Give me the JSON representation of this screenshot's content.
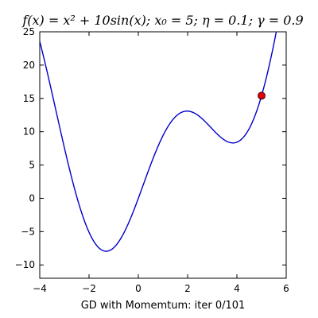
{
  "chart_data": {
    "type": "line",
    "title": "f(x) = x² + 10sin(x); x₀ = 5; η = 0.1; γ = 0.9",
    "xlabel": "GD with Momemtum: iter 0/101",
    "ylabel": "",
    "xlim": [
      -4,
      6
    ],
    "ylim": [
      -12,
      25
    ],
    "xticks": [
      -4,
      -2,
      0,
      2,
      4,
      6
    ],
    "yticks": [
      -10,
      -5,
      0,
      5,
      10,
      15,
      20,
      25
    ],
    "grid": false,
    "legend": "none",
    "function": "x^2 + 10*sin(x)",
    "curve_color": "#0000cc",
    "series": [
      {
        "x": [
          -4,
          -3.5,
          -3,
          -2.5,
          -2,
          -1.5,
          -1.3,
          -1,
          -0.5,
          0,
          0.5,
          1,
          1.5,
          2,
          2.5,
          3,
          3.5,
          3.8,
          4,
          4.5,
          5,
          5.5
        ],
        "values": [
          23.57,
          15.76,
          7.59,
          0.27,
          -5.09,
          -7.72,
          -7.95,
          -7.41,
          -4.54,
          0,
          5.04,
          9.41,
          12.22,
          13.09,
          12.23,
          10.41,
          8.74,
          8.38,
          8.43,
          10.48,
          15.41,
          23.2
        ]
      }
    ],
    "marker": {
      "x": 5,
      "y": 15.41,
      "color": "#e8000b"
    }
  }
}
